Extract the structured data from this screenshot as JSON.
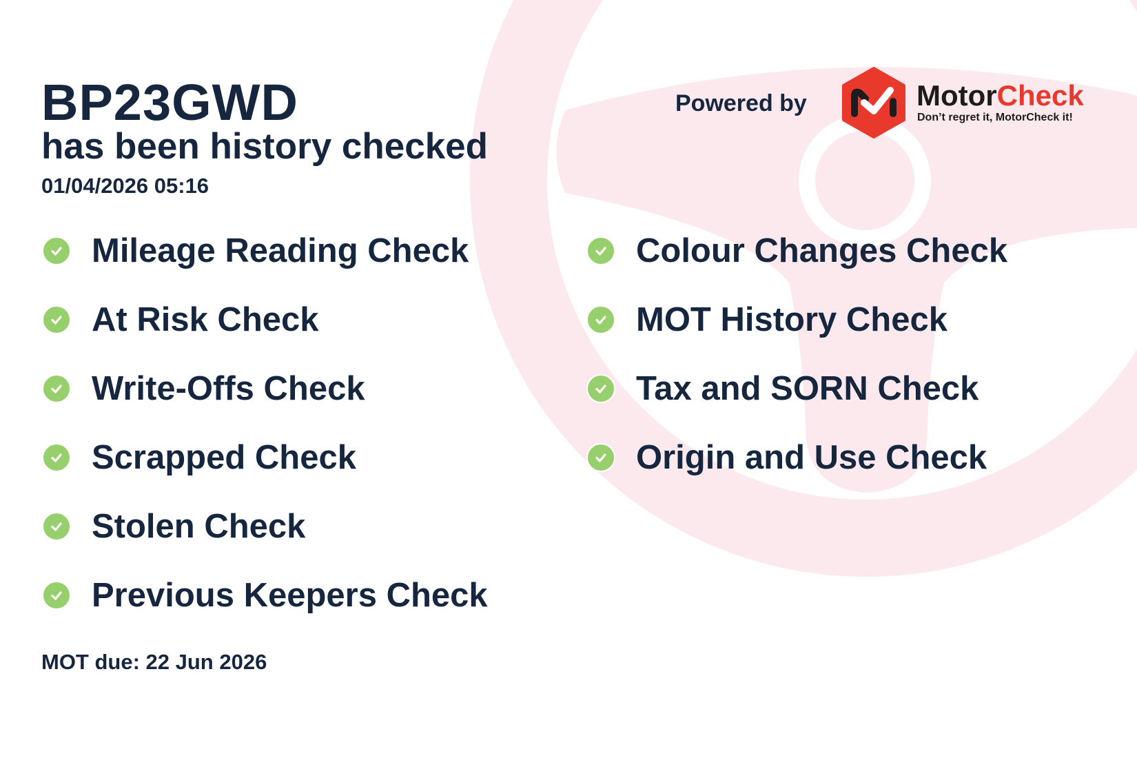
{
  "vehicle": {
    "registration": "BP23GWD",
    "subtitle": "has been history checked",
    "checked_at": "01/04/2026 05:16",
    "mot_due": "MOT due: 22 Jun 2026"
  },
  "branding": {
    "powered_by": "Powered by",
    "brand_part1": "Motor",
    "brand_part2": "Check",
    "tagline": "Don’t regret it, MotorCheck it!",
    "brand_red": "#e9392c",
    "background_wheel_color": "#fce9ee"
  },
  "checks_left": [
    {
      "label": "Mileage Reading Check",
      "icon": "check-circle-icon"
    },
    {
      "label": "At Risk Check",
      "icon": "check-circle-icon"
    },
    {
      "label": "Write-Offs Check",
      "icon": "check-circle-icon"
    },
    {
      "label": "Scrapped Check",
      "icon": "check-circle-icon"
    },
    {
      "label": "Stolen Check",
      "icon": "check-circle-icon"
    },
    {
      "label": "Previous Keepers Check",
      "icon": "check-circle-icon"
    }
  ],
  "checks_right": [
    {
      "label": "Colour Changes Check",
      "icon": "check-circle-icon"
    },
    {
      "label": "MOT History Check",
      "icon": "check-circle-icon"
    },
    {
      "label": "Tax and SORN Check",
      "icon": "check-circle-icon"
    },
    {
      "label": "Origin and Use Check",
      "icon": "check-circle-icon"
    }
  ],
  "colors": {
    "text": "#16263f",
    "check_green": "#96cf6c"
  }
}
